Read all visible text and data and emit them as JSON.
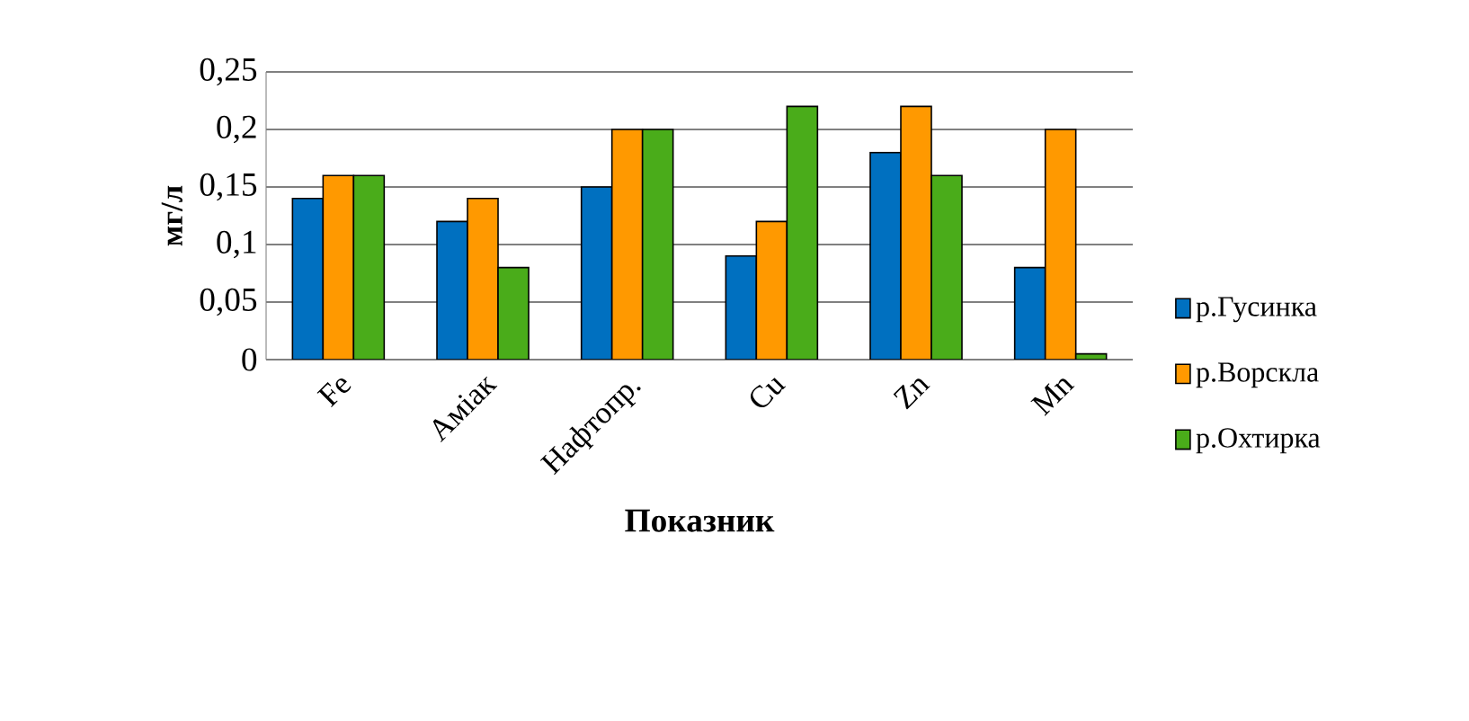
{
  "chart_data": {
    "type": "bar",
    "xlabel": "Показник",
    "ylabel": "мг/л",
    "categories": [
      "Fe",
      "Аміак",
      "Нафтопр.",
      "Cu",
      "Zn",
      "Mn"
    ],
    "series": [
      {
        "name": "р.Гусинка",
        "color": "#0070c0",
        "values": [
          0.14,
          0.12,
          0.15,
          0.09,
          0.18,
          0.08
        ]
      },
      {
        "name": "р.Ворскла",
        "color": "#ff9900",
        "values": [
          0.16,
          0.14,
          0.2,
          0.12,
          0.22,
          0.2
        ]
      },
      {
        "name": "р.Охтирка",
        "color": "#4aac1a",
        "values": [
          0.16,
          0.08,
          0.2,
          0.22,
          0.16,
          0.005
        ]
      }
    ],
    "ylim": [
      0,
      0.25
    ],
    "yticks": [
      {
        "value": 0,
        "label": "0"
      },
      {
        "value": 0.05,
        "label": "0,05"
      },
      {
        "value": 0.1,
        "label": "0,1"
      },
      {
        "value": 0.15,
        "label": "0,15"
      },
      {
        "value": 0.2,
        "label": "0,2"
      },
      {
        "value": 0.25,
        "label": "0,25"
      }
    ],
    "grid": "y",
    "legend": "right"
  }
}
